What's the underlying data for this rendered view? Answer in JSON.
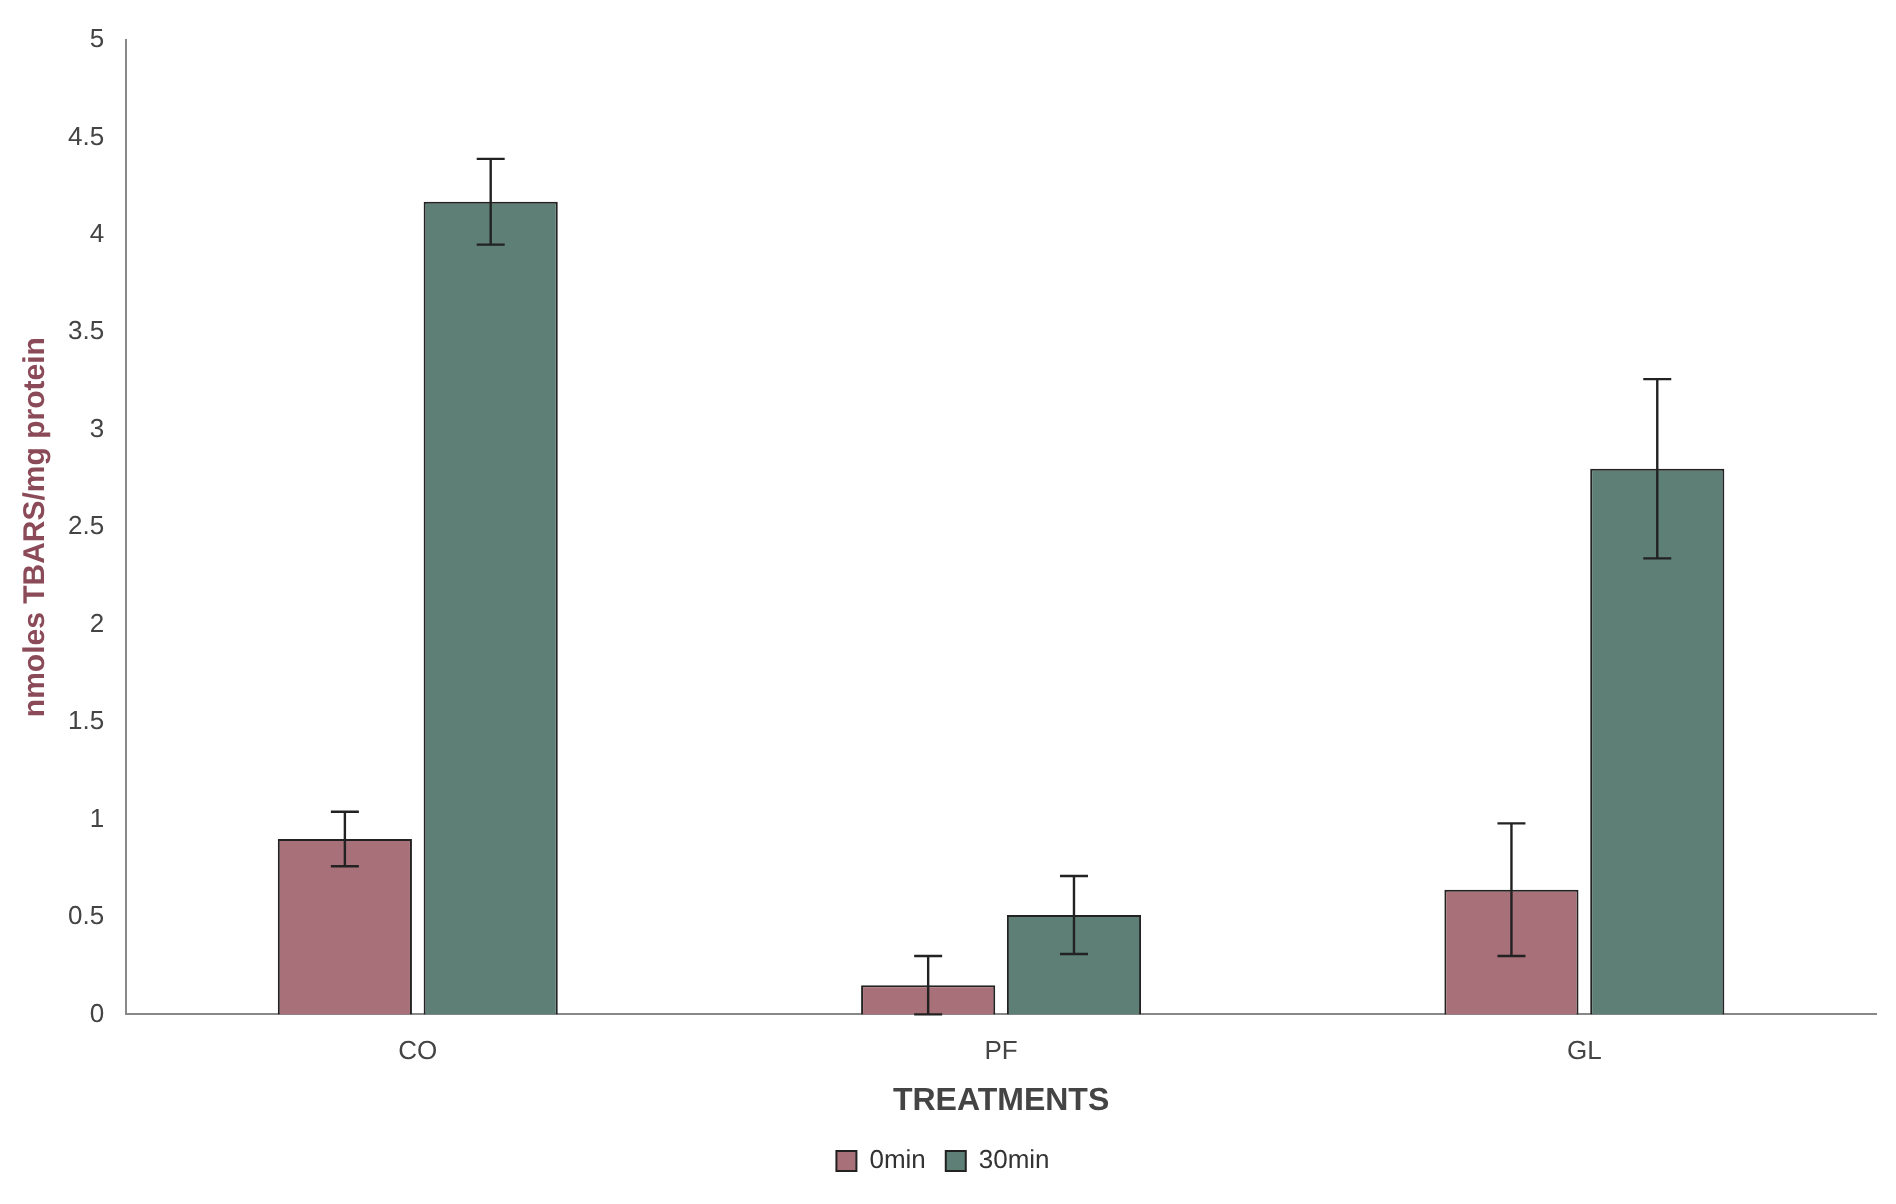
{
  "chart_data": {
    "type": "bar",
    "xlabel": "TREATMENTS",
    "ylabel": "nmoles TBARS/mg protein",
    "categories": [
      "CO",
      "PF",
      "GL"
    ],
    "series": [
      {
        "name": "0min",
        "color": "#a87078",
        "values": [
          0.9,
          0.15,
          0.64
        ],
        "errors": [
          0.14,
          0.15,
          0.34
        ]
      },
      {
        "name": "30min",
        "color": "#5e7f76",
        "values": [
          4.17,
          0.51,
          2.8
        ],
        "errors": [
          0.22,
          0.2,
          0.46
        ]
      }
    ],
    "ylim": [
      0,
      5
    ],
    "yticks": [
      0,
      0.5,
      1,
      1.5,
      2,
      2.5,
      3,
      3.5,
      4,
      4.5,
      5
    ],
    "grid": false,
    "legend": "bottom"
  }
}
